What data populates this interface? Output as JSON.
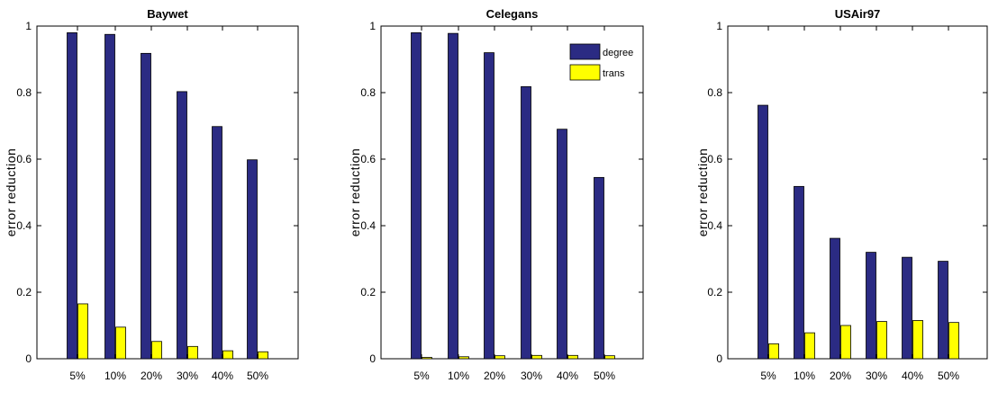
{
  "chart_data": [
    {
      "type": "bar",
      "title": "Baywet",
      "ylabel": "error reduction",
      "xlabel": "",
      "categories": [
        "5%",
        "10%",
        "20%",
        "30%",
        "40%",
        "50%"
      ],
      "ylim": [
        0,
        1
      ],
      "yticks": [
        "0",
        "0.2",
        "0.4",
        "0.6",
        "0.8",
        "1"
      ],
      "series": [
        {
          "name": "degree",
          "color": "#2b2b83",
          "values": [
            0.98,
            0.975,
            0.918,
            0.803,
            0.698,
            0.598
          ]
        },
        {
          "name": "trans",
          "color": "#ffff00",
          "values": [
            0.165,
            0.095,
            0.052,
            0.037,
            0.024,
            0.021
          ]
        }
      ],
      "legend": null
    },
    {
      "type": "bar",
      "title": "Celegans",
      "ylabel": "error reduction",
      "xlabel": "",
      "categories": [
        "5%",
        "10%",
        "20%",
        "30%",
        "40%",
        "50%"
      ],
      "ylim": [
        0,
        1
      ],
      "yticks": [
        "0",
        "0.2",
        "0.4",
        "0.6",
        "0.8",
        "1"
      ],
      "series": [
        {
          "name": "degree",
          "color": "#2b2b83",
          "values": [
            0.98,
            0.978,
            0.92,
            0.818,
            0.69,
            0.545
          ]
        },
        {
          "name": "trans",
          "color": "#ffff00",
          "values": [
            0.004,
            0.006,
            0.009,
            0.01,
            0.01,
            0.009
          ]
        }
      ],
      "legend": {
        "placement": "top-right",
        "entries": [
          "degree",
          "trans"
        ]
      }
    },
    {
      "type": "bar",
      "title": "USAir97",
      "ylabel": "error reduction",
      "xlabel": "",
      "categories": [
        "5%",
        "10%",
        "20%",
        "30%",
        "40%",
        "50%"
      ],
      "ylim": [
        0,
        1
      ],
      "yticks": [
        "0",
        "0.2",
        "0.4",
        "0.6",
        "0.8",
        "1"
      ],
      "series": [
        {
          "name": "degree",
          "color": "#2b2b83",
          "values": [
            0.762,
            0.518,
            0.362,
            0.32,
            0.305,
            0.293
          ]
        },
        {
          "name": "trans",
          "color": "#ffff00",
          "values": [
            0.045,
            0.078,
            0.1,
            0.112,
            0.115,
            0.109
          ]
        }
      ],
      "legend": null
    }
  ]
}
